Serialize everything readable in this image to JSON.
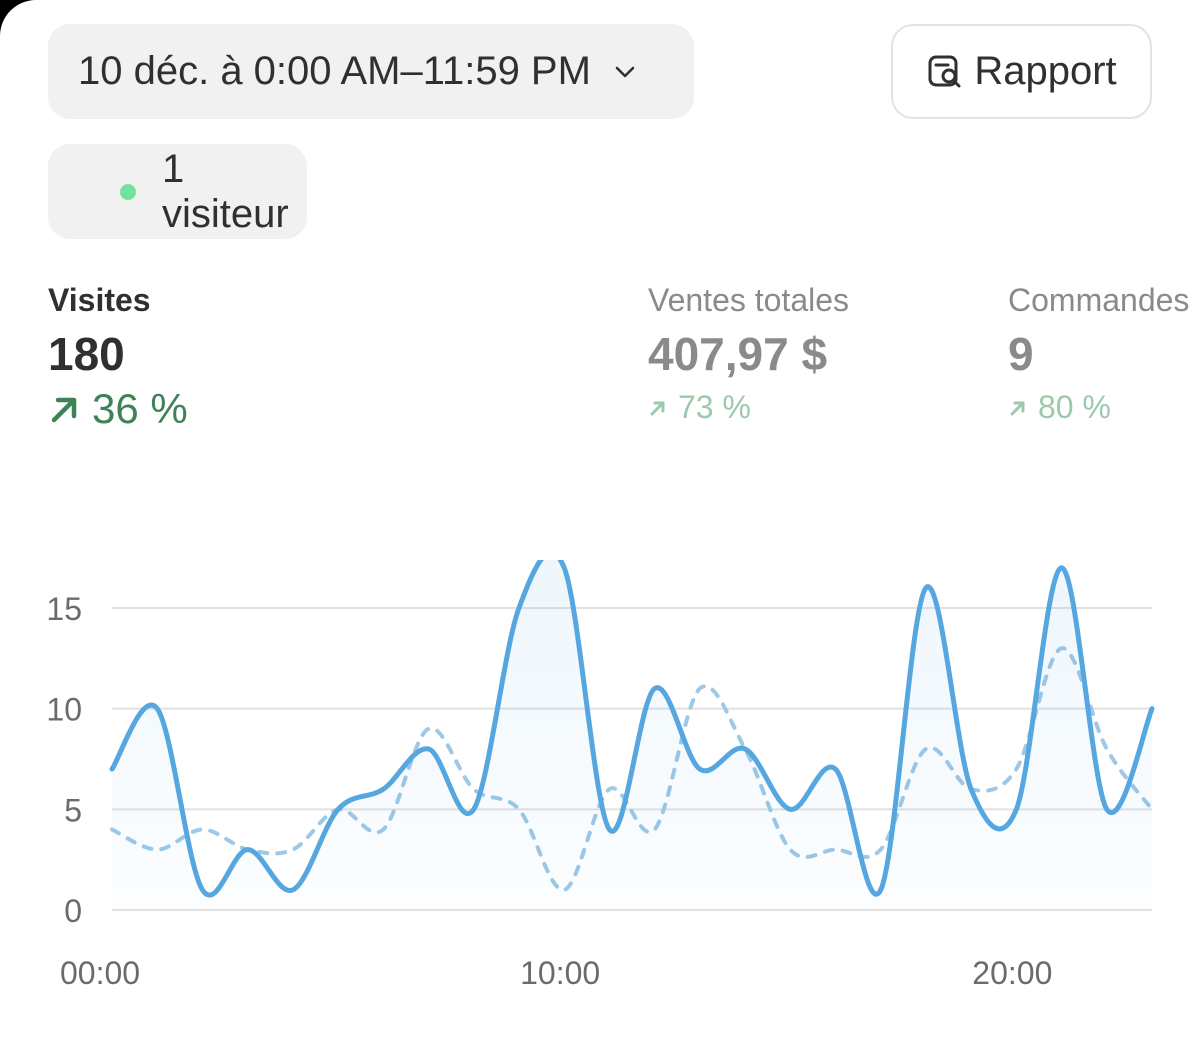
{
  "header": {
    "date_range": "10 déc. à 0:00 AM–11:59 PM",
    "report_label": "Rapport"
  },
  "visitors": {
    "label": "1 visiteur",
    "dot_color": "#6fe39c"
  },
  "metrics": [
    {
      "label": "Visites",
      "value": "180",
      "delta": "36 %",
      "active": true
    },
    {
      "label": "Ventes totales",
      "value": "407,97 $",
      "delta": "73 %",
      "active": false
    },
    {
      "label": "Commandes",
      "value": "9",
      "delta": "80 %",
      "active": false
    }
  ],
  "colors": {
    "accent": "#56a6e0",
    "comparison": "#9dc8e6",
    "positive": "#3e8356",
    "positive_muted": "#9cc9aa"
  },
  "chart_data": {
    "type": "line",
    "x": [
      0,
      1,
      2,
      3,
      4,
      5,
      6,
      7,
      8,
      9,
      10,
      11,
      12,
      13,
      14,
      15,
      16,
      17,
      18,
      19,
      20,
      21,
      22,
      23
    ],
    "x_ticks": [
      "00:00",
      "10:00",
      "20:00"
    ],
    "x_tick_positions": [
      0,
      10,
      20
    ],
    "y_ticks": [
      0,
      5,
      10,
      15
    ],
    "ylim": [
      0,
      17
    ],
    "grid": true,
    "series": [
      {
        "values": [
          7,
          10,
          1,
          3,
          1,
          5,
          6,
          8,
          5,
          15,
          17,
          4,
          11,
          7,
          8,
          5,
          7,
          1,
          16,
          6,
          5,
          17,
          5,
          10
        ],
        "style": "solid"
      },
      {
        "values": [
          4,
          3,
          4,
          3,
          3,
          5,
          4,
          9,
          6,
          5,
          1,
          6,
          4,
          11,
          8,
          3,
          3,
          3,
          8,
          6,
          7,
          13,
          8,
          5
        ],
        "style": "dashed"
      }
    ]
  }
}
